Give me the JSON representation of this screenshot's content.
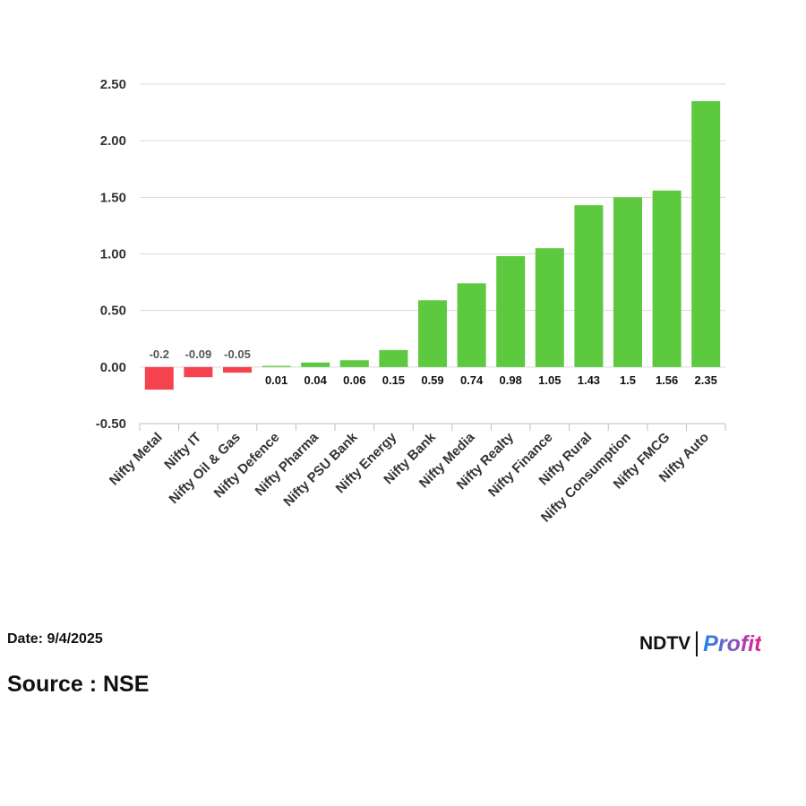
{
  "chart_data": {
    "type": "bar",
    "categories": [
      "Nifty Metal",
      "Nifty IT",
      "Nifty Oil & Gas",
      "Nifty Defence",
      "Nifty Pharma",
      "Nifty PSU Bank",
      "Nifty Energy",
      "Nifty Bank",
      "Nifty Media",
      "Nifty Realty",
      "Nifty Finance",
      "Nifty Rural",
      "Nifty Consumption",
      "Nifty FMCG",
      "Nifty Auto"
    ],
    "values": [
      -0.2,
      -0.09,
      -0.05,
      0.01,
      0.04,
      0.06,
      0.15,
      0.59,
      0.74,
      0.98,
      1.05,
      1.43,
      1.5,
      1.56,
      2.35
    ],
    "data_labels": [
      "-0.2",
      "-0.09",
      "-0.05",
      "0.01",
      "0.04",
      "0.06",
      "0.15",
      "0.59",
      "0.74",
      "0.98",
      "1.05",
      "1.43",
      "1.5",
      "1.56",
      "2.35"
    ],
    "ylim": [
      -0.5,
      2.5
    ],
    "yticks": [
      -0.5,
      0,
      0.5,
      1,
      1.5,
      2,
      2.5
    ],
    "ytick_labels": [
      "-0.50",
      "0.00",
      "0.50",
      "1.00",
      "1.50",
      "2.00",
      "2.50"
    ],
    "grid": true,
    "legend": "none",
    "colors": {
      "positive": "#5cc93f",
      "negative": "#f4434f",
      "grid": "#d9d9d9",
      "axis": "#bfbfbf"
    }
  },
  "footer": {
    "date": "Date: 9/4/2025",
    "source": "Source : NSE"
  },
  "brand": {
    "ndtv": "NDTV",
    "profit": "Profit"
  }
}
